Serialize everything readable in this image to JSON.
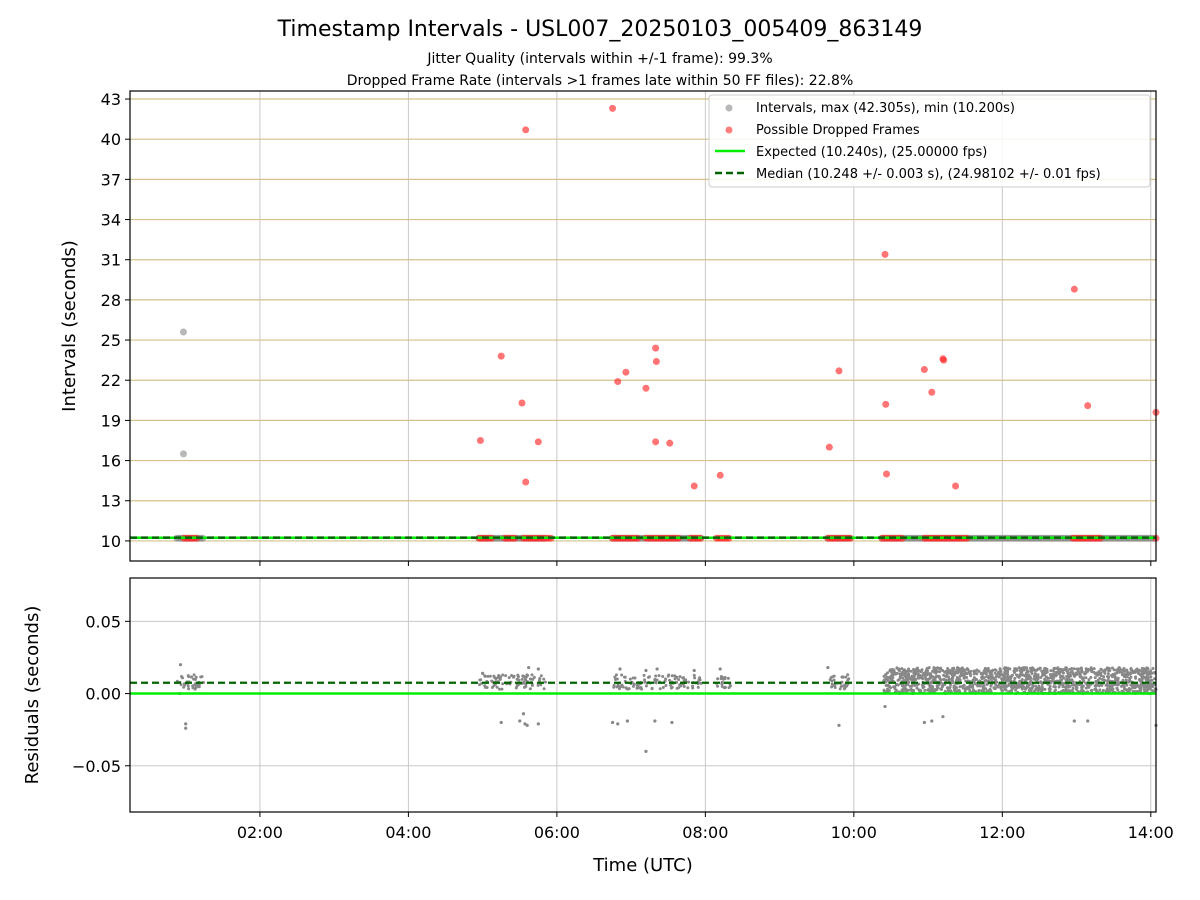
{
  "chart_data": [
    {
      "panel": "intervals",
      "type": "scatter",
      "title": "Timestamp Intervals - USL007_20250103_005409_863149",
      "subtitle_lines": [
        "Jitter Quality (intervals within +/-1 frame): 99.3%",
        "Dropped Frame Rate (intervals >1 frames late within 50 FF files): 22.8%"
      ],
      "xlabel": "",
      "ylabel": "Intervals (seconds)",
      "xlim_hours": [
        0.25,
        14.07
      ],
      "ylim": [
        8.5,
        43.6
      ],
      "yticks": [
        10,
        13,
        16,
        19,
        22,
        25,
        28,
        31,
        34,
        37,
        40,
        43
      ],
      "xticks_hours": [
        2,
        4,
        6,
        8,
        10,
        12,
        14
      ],
      "xtick_labels": [
        "02:00",
        "04:00",
        "06:00",
        "08:00",
        "10:00",
        "12:00",
        "14:00"
      ],
      "grid": "x-gray, y-goldenrod",
      "legend_position": "top-right",
      "legend": [
        {
          "key": "intervals",
          "label": "Intervals, max (42.305s), min (10.200s)"
        },
        {
          "key": "dropped",
          "label": "Possible Dropped Frames"
        },
        {
          "key": "expected",
          "label": "Expected (10.240s), (25.00000 fps)"
        },
        {
          "key": "median",
          "label": "Median (10.248 +/- 0.003 s), (24.98102 +/- 0.01 fps)"
        }
      ],
      "expected_value": 10.24,
      "median_value": 10.248,
      "normal_baseline_ranges_hours": [
        [
          0.88,
          1.25
        ],
        [
          4.95,
          5.85
        ],
        [
          6.75,
          7.95
        ],
        [
          9.65,
          9.95
        ],
        [
          10.38,
          14.07
        ]
      ],
      "normal_outliers": [
        {
          "x": 0.97,
          "y": 25.6
        },
        {
          "x": 0.97,
          "y": 16.5
        }
      ],
      "dropped_baseline_ranges_hours": [
        [
          0.98,
          1.18
        ],
        [
          4.95,
          5.15
        ],
        [
          5.3,
          5.45
        ],
        [
          5.55,
          5.95
        ],
        [
          6.75,
          7.1
        ],
        [
          7.2,
          7.65
        ],
        [
          7.8,
          7.95
        ],
        [
          8.15,
          8.35
        ],
        [
          9.65,
          9.98
        ],
        [
          10.38,
          10.65
        ],
        [
          10.95,
          11.55
        ],
        [
          12.95,
          13.35
        ],
        [
          14.07,
          14.07
        ]
      ],
      "dropped_outliers": [
        {
          "x": 5.58,
          "y": 40.7
        },
        {
          "x": 6.75,
          "y": 42.3
        },
        {
          "x": 5.25,
          "y": 23.8
        },
        {
          "x": 4.97,
          "y": 17.5
        },
        {
          "x": 5.53,
          "y": 20.3
        },
        {
          "x": 5.58,
          "y": 14.4
        },
        {
          "x": 5.75,
          "y": 17.4
        },
        {
          "x": 6.82,
          "y": 21.9
        },
        {
          "x": 6.93,
          "y": 22.6
        },
        {
          "x": 7.2,
          "y": 21.4
        },
        {
          "x": 7.33,
          "y": 24.4
        },
        {
          "x": 7.34,
          "y": 23.4
        },
        {
          "x": 7.33,
          "y": 17.4
        },
        {
          "x": 7.52,
          "y": 17.3
        },
        {
          "x": 7.85,
          "y": 14.1
        },
        {
          "x": 8.2,
          "y": 14.9
        },
        {
          "x": 9.67,
          "y": 17.0
        },
        {
          "x": 9.8,
          "y": 22.7
        },
        {
          "x": 10.42,
          "y": 31.4
        },
        {
          "x": 10.43,
          "y": 20.2
        },
        {
          "x": 10.44,
          "y": 15.0
        },
        {
          "x": 10.95,
          "y": 22.8
        },
        {
          "x": 11.05,
          "y": 21.1
        },
        {
          "x": 11.2,
          "y": 23.6
        },
        {
          "x": 11.21,
          "y": 23.5
        },
        {
          "x": 11.37,
          "y": 14.1
        },
        {
          "x": 12.97,
          "y": 28.8
        },
        {
          "x": 13.15,
          "y": 20.1
        },
        {
          "x": 14.07,
          "y": 19.6
        }
      ]
    },
    {
      "panel": "residuals",
      "type": "scatter",
      "title": "",
      "xlabel": "Time (UTC)",
      "ylabel": "Residuals (seconds)",
      "xlim_hours": [
        0.25,
        14.07
      ],
      "ylim": [
        -0.082,
        0.08
      ],
      "yticks": [
        -0.05,
        0.0,
        0.05
      ],
      "ytick_labels": [
        "−0.05",
        "0.00",
        "0.05"
      ],
      "xticks_hours": [
        2,
        4,
        6,
        8,
        10,
        12,
        14
      ],
      "xtick_labels": [
        "02:00",
        "04:00",
        "06:00",
        "08:00",
        "10:00",
        "12:00",
        "14:00"
      ],
      "grid": "both-gray",
      "expected_residual": 0.0,
      "median_residual": 0.0075,
      "clusters": [
        {
          "x_range": [
            0.88,
            1.25
          ],
          "y_range": [
            0.003,
            0.013
          ],
          "n": 40
        },
        {
          "x_range": [
            4.95,
            5.85
          ],
          "y_range": [
            0.003,
            0.013
          ],
          "n": 90
        },
        {
          "x_range": [
            6.75,
            7.95
          ],
          "y_range": [
            0.003,
            0.013
          ],
          "n": 110
        },
        {
          "x_range": [
            8.15,
            8.35
          ],
          "y_range": [
            0.004,
            0.012
          ],
          "n": 20
        },
        {
          "x_range": [
            9.65,
            9.95
          ],
          "y_range": [
            0.003,
            0.013
          ],
          "n": 30
        },
        {
          "x_range": [
            10.4,
            14.07
          ],
          "y_range": [
            0.0,
            0.018
          ],
          "n": 1400
        }
      ],
      "points": [
        {
          "x": 0.93,
          "y": 0.02
        },
        {
          "x": 1.0,
          "y": -0.021
        },
        {
          "x": 1.0,
          "y": -0.024
        },
        {
          "x": 0.92,
          "y": 0.0
        },
        {
          "x": 5.25,
          "y": -0.02
        },
        {
          "x": 5.5,
          "y": -0.019
        },
        {
          "x": 5.55,
          "y": -0.014
        },
        {
          "x": 5.57,
          "y": -0.021
        },
        {
          "x": 5.6,
          "y": -0.022
        },
        {
          "x": 5.75,
          "y": -0.021
        },
        {
          "x": 5.75,
          "y": 0.017
        },
        {
          "x": 5.62,
          "y": 0.018
        },
        {
          "x": 5.0,
          "y": 0.014
        },
        {
          "x": 6.75,
          "y": -0.02
        },
        {
          "x": 6.82,
          "y": -0.021
        },
        {
          "x": 6.95,
          "y": -0.019
        },
        {
          "x": 7.2,
          "y": -0.04
        },
        {
          "x": 7.32,
          "y": -0.019
        },
        {
          "x": 7.55,
          "y": -0.02
        },
        {
          "x": 6.85,
          "y": 0.017
        },
        {
          "x": 7.2,
          "y": 0.016
        },
        {
          "x": 7.35,
          "y": 0.017
        },
        {
          "x": 7.85,
          "y": 0.016
        },
        {
          "x": 8.2,
          "y": 0.017
        },
        {
          "x": 9.8,
          "y": -0.022
        },
        {
          "x": 9.65,
          "y": 0.018
        },
        {
          "x": 10.42,
          "y": -0.009
        },
        {
          "x": 10.95,
          "y": -0.02
        },
        {
          "x": 11.05,
          "y": -0.019
        },
        {
          "x": 11.2,
          "y": -0.016
        },
        {
          "x": 12.97,
          "y": -0.019
        },
        {
          "x": 13.15,
          "y": -0.019
        },
        {
          "x": 14.07,
          "y": -0.022
        }
      ]
    }
  ],
  "colors": {
    "normal_points": "#888888",
    "dropped_points": "#ff2a2a",
    "expected_line": "#00ee00",
    "median_line": "#006400",
    "y_grid_top": "#d4c28a",
    "grid": "#c8c8c8"
  }
}
